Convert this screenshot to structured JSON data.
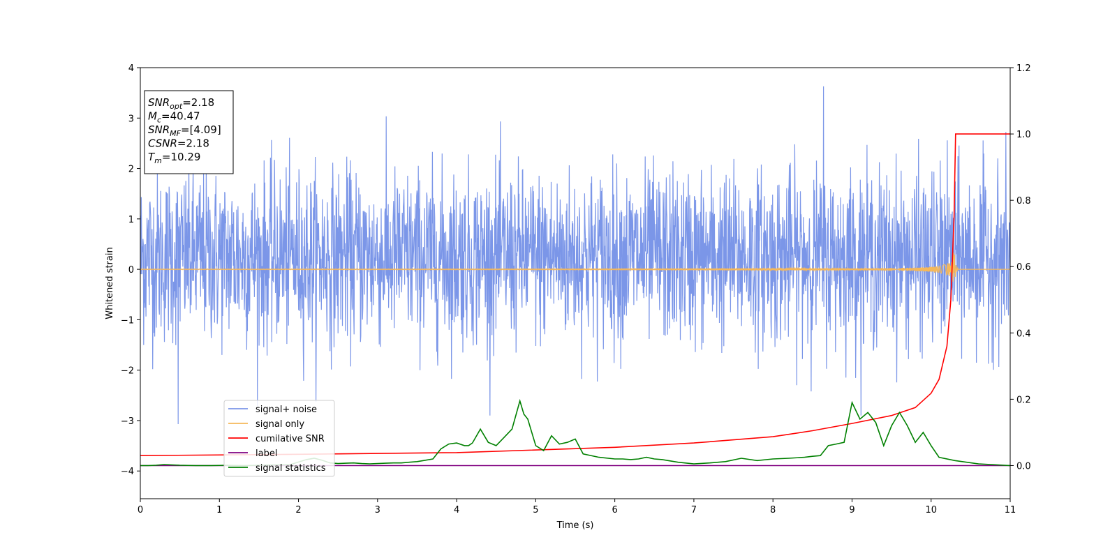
{
  "chart_data": {
    "type": "line",
    "xlabel": "Time (s)",
    "ylabel": "Whitened strain",
    "xlim": [
      0,
      11
    ],
    "ylim": [
      -4.55,
      4
    ],
    "y2lim": [
      -0.1,
      1.2
    ],
    "xticks": [
      0,
      1,
      2,
      3,
      4,
      5,
      6,
      7,
      8,
      9,
      10,
      11
    ],
    "yticks": [
      "−4",
      "−3",
      "−2",
      "−1",
      "0",
      "1",
      "2",
      "3",
      "4"
    ],
    "y2ticks": [
      "0.0",
      "0.2",
      "0.4",
      "0.6",
      "0.8",
      "1.0",
      "1.2"
    ],
    "grid": false,
    "legend_position": "lower-left",
    "annotation": {
      "lines": [
        {
          "sym": "SNR",
          "sub": "opt",
          "value": "=2.18"
        },
        {
          "sym": "M",
          "sub": "c",
          "value": "=40.47"
        },
        {
          "sym": "SNR",
          "sub": "MF",
          "value": "=[4.09]"
        },
        {
          "sym": "CSNR",
          "sub": "",
          "value": "=2.18"
        },
        {
          "sym": "T",
          "sub": "m",
          "value": "=10.29"
        }
      ]
    },
    "series": [
      {
        "name": "signal+ noise",
        "axis": "left",
        "color": "#7b96e8",
        "kind": "noise",
        "typical_range": [
          -1.5,
          2.0
        ],
        "peak_max": 3.63,
        "peak_max_at": 8.64,
        "peak_min": -3.07,
        "peak_min_at": 0.48
      },
      {
        "name": "signal only",
        "axis": "left",
        "color": "#f5b85a",
        "kind": "chirp",
        "merger_time": 10.29,
        "peak_amplitude": 0.42
      },
      {
        "name": "cumilative SNR",
        "axis": "right",
        "color": "#ff0000",
        "x": [
          0,
          2,
          4,
          6,
          7,
          8,
          8.5,
          9,
          9.5,
          9.8,
          10,
          10.1,
          10.2,
          10.25,
          10.29,
          10.31,
          11
        ],
        "y": [
          0.03,
          0.034,
          0.039,
          0.055,
          0.068,
          0.087,
          0.105,
          0.127,
          0.151,
          0.175,
          0.218,
          0.26,
          0.36,
          0.5,
          0.75,
          1.0,
          1.0
        ]
      },
      {
        "name": "label",
        "axis": "right",
        "color": "#800080",
        "x": [
          0,
          11
        ],
        "y": [
          0.0,
          0.0
        ]
      },
      {
        "name": "signal statistics",
        "axis": "right",
        "color": "#008000",
        "x": [
          0,
          0.1,
          0.2,
          0.3,
          0.4,
          0.5,
          0.7,
          0.9,
          1.1,
          1.3,
          1.5,
          1.7,
          1.9,
          2.1,
          2.2,
          2.3,
          2.4,
          2.5,
          2.6,
          2.7,
          2.8,
          2.9,
          3.0,
          3.1,
          3.2,
          3.3,
          3.4,
          3.5,
          3.6,
          3.7,
          3.8,
          3.9,
          4.0,
          4.1,
          4.15,
          4.2,
          4.3,
          4.4,
          4.5,
          4.6,
          4.7,
          4.8,
          4.85,
          4.9,
          5.0,
          5.1,
          5.2,
          5.3,
          5.4,
          5.5,
          5.6,
          5.8,
          6.0,
          6.1,
          6.2,
          6.3,
          6.4,
          6.5,
          6.6,
          6.8,
          7.0,
          7.2,
          7.4,
          7.6,
          7.8,
          8.0,
          8.2,
          8.4,
          8.5,
          8.6,
          8.7,
          8.8,
          8.9,
          9.0,
          9.1,
          9.2,
          9.3,
          9.4,
          9.5,
          9.6,
          9.65,
          9.7,
          9.8,
          9.9,
          10.0,
          10.1,
          10.3,
          10.6,
          11.0
        ],
        "y": [
          0.0,
          0.0,
          0.001,
          0.003,
          0.002,
          0.001,
          0.0,
          0.0,
          0.001,
          0.0,
          0.001,
          0.002,
          0.003,
          0.018,
          0.022,
          0.016,
          0.008,
          0.006,
          0.007,
          0.008,
          0.006,
          0.005,
          0.006,
          0.007,
          0.008,
          0.008,
          0.01,
          0.012,
          0.016,
          0.02,
          0.05,
          0.065,
          0.068,
          0.06,
          0.06,
          0.068,
          0.11,
          0.07,
          0.06,
          0.085,
          0.11,
          0.195,
          0.155,
          0.14,
          0.06,
          0.045,
          0.09,
          0.065,
          0.07,
          0.08,
          0.035,
          0.025,
          0.02,
          0.02,
          0.018,
          0.02,
          0.025,
          0.02,
          0.018,
          0.01,
          0.005,
          0.008,
          0.012,
          0.022,
          0.015,
          0.02,
          0.022,
          0.025,
          0.028,
          0.03,
          0.06,
          0.065,
          0.07,
          0.19,
          0.14,
          0.16,
          0.13,
          0.06,
          0.12,
          0.16,
          0.14,
          0.12,
          0.07,
          0.1,
          0.06,
          0.025,
          0.015,
          0.005,
          0.0
        ]
      }
    ]
  }
}
